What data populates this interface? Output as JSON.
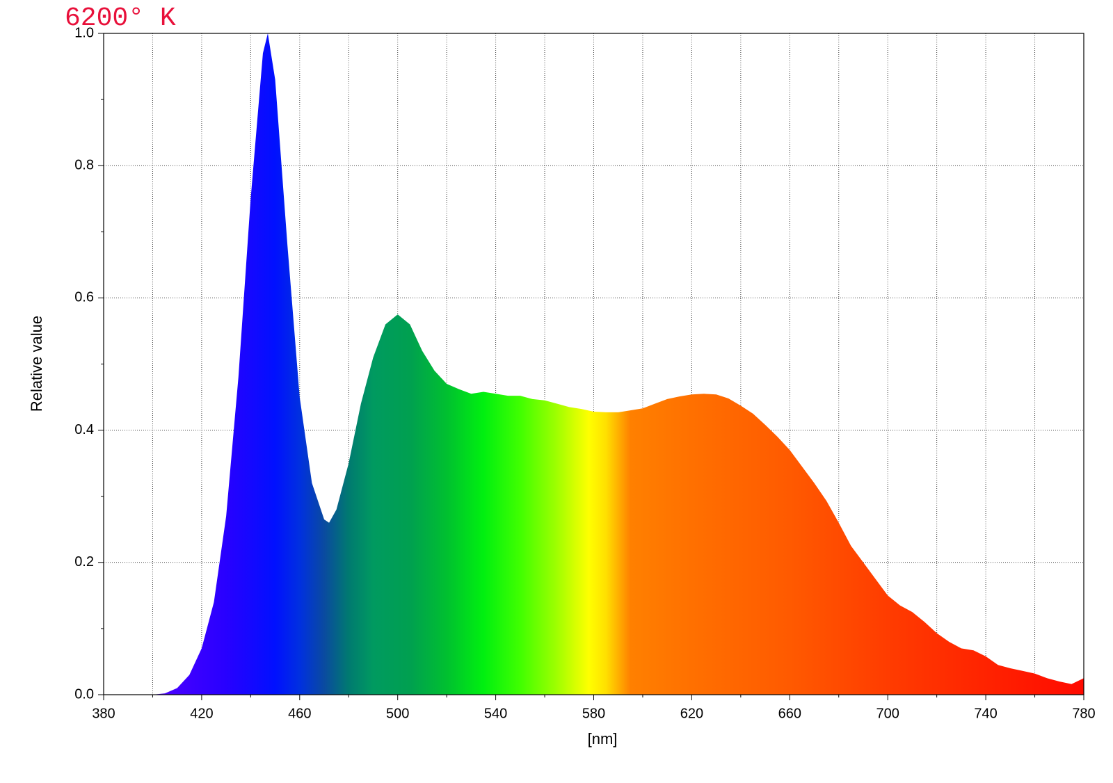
{
  "chart_data": {
    "type": "area",
    "title": "6200° K",
    "x_label": "[nm]",
    "y_label": "Relative value",
    "x": [
      380,
      385,
      390,
      395,
      400,
      405,
      410,
      415,
      420,
      425,
      430,
      435,
      440,
      445,
      447,
      450,
      455,
      460,
      465,
      470,
      472,
      475,
      480,
      485,
      490,
      495,
      500,
      505,
      510,
      515,
      520,
      525,
      530,
      535,
      540,
      545,
      550,
      555,
      560,
      565,
      570,
      575,
      580,
      585,
      590,
      595,
      600,
      605,
      610,
      615,
      620,
      625,
      630,
      635,
      640,
      645,
      650,
      655,
      660,
      665,
      670,
      675,
      680,
      685,
      690,
      695,
      700,
      705,
      710,
      715,
      720,
      725,
      730,
      735,
      740,
      745,
      750,
      755,
      760,
      765,
      770,
      775,
      780
    ],
    "values": [
      0,
      0,
      0,
      0,
      0,
      0.002,
      0.01,
      0.03,
      0.07,
      0.14,
      0.27,
      0.48,
      0.75,
      0.97,
      1.0,
      0.93,
      0.68,
      0.45,
      0.32,
      0.265,
      0.26,
      0.28,
      0.35,
      0.44,
      0.51,
      0.56,
      0.575,
      0.56,
      0.52,
      0.49,
      0.47,
      0.462,
      0.455,
      0.458,
      0.455,
      0.452,
      0.452,
      0.447,
      0.445,
      0.44,
      0.435,
      0.432,
      0.428,
      0.427,
      0.427,
      0.43,
      0.433,
      0.44,
      0.447,
      0.451,
      0.454,
      0.455,
      0.454,
      0.448,
      0.437,
      0.425,
      0.408,
      0.39,
      0.37,
      0.345,
      0.32,
      0.293,
      0.26,
      0.225,
      0.2,
      0.175,
      0.15,
      0.135,
      0.125,
      0.11,
      0.093,
      0.08,
      0.07,
      0.067,
      0.058,
      0.045,
      0.04,
      0.036,
      0.032,
      0.025,
      0.02,
      0.016,
      0.025
    ],
    "fill_gradient": [
      {
        "x": 400,
        "color": "#5000ff"
      },
      {
        "x": 430,
        "color": "#2800ff"
      },
      {
        "x": 450,
        "color": "#0010ff"
      },
      {
        "x": 460,
        "color": "#0030e0"
      },
      {
        "x": 470,
        "color": "#0a4aa0"
      },
      {
        "x": 480,
        "color": "#007a70"
      },
      {
        "x": 490,
        "color": "#009a60"
      },
      {
        "x": 505,
        "color": "#00a050"
      },
      {
        "x": 520,
        "color": "#00c030"
      },
      {
        "x": 535,
        "color": "#00f010"
      },
      {
        "x": 550,
        "color": "#40ff00"
      },
      {
        "x": 565,
        "color": "#a0ff00"
      },
      {
        "x": 578,
        "color": "#ffff00"
      },
      {
        "x": 585,
        "color": "#ffe000"
      },
      {
        "x": 595,
        "color": "#ff8000"
      },
      {
        "x": 620,
        "color": "#ff7000"
      },
      {
        "x": 660,
        "color": "#ff5a00"
      },
      {
        "x": 700,
        "color": "#ff3c00"
      },
      {
        "x": 780,
        "color": "#ff0a00"
      }
    ],
    "xlim": [
      380,
      780
    ],
    "xticks": [
      380,
      420,
      460,
      500,
      540,
      580,
      620,
      660,
      700,
      740,
      780
    ],
    "ylim": [
      0,
      1
    ],
    "yticks": [
      {
        "value": 0,
        "label": "0.0"
      },
      0.2,
      0.4,
      0.6,
      0.8,
      {
        "value": 1,
        "label": "1.0"
      }
    ],
    "grid": true
  }
}
